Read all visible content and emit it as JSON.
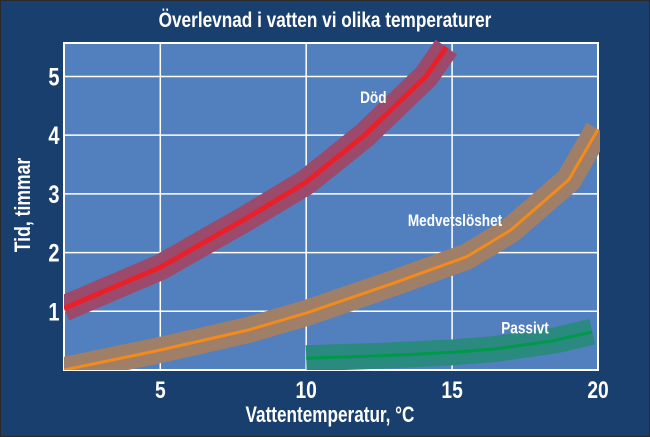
{
  "chart_data": {
    "type": "line",
    "title": "Överlevnad i vatten vi olika temperaturer",
    "xlabel": "Vattentemperatur, °C",
    "ylabel": "Tid, timmar",
    "xlim": [
      1.7,
      20
    ],
    "ylim": [
      0,
      5.57
    ],
    "xticks": [
      5,
      10,
      15,
      20
    ],
    "yticks": [
      1,
      2,
      3,
      4,
      5
    ],
    "grid": true,
    "series": [
      {
        "name": "Död",
        "color": "#e8202a",
        "band_color": "#9b4a6c",
        "points": [
          [
            1.7,
            1.05
          ],
          [
            5,
            1.75
          ],
          [
            8,
            2.6
          ],
          [
            10,
            3.2
          ],
          [
            12,
            4.0
          ],
          [
            14.1,
            5.0
          ],
          [
            14.8,
            5.5
          ]
        ],
        "label_at": [
          12.3,
          4.55
        ]
      },
      {
        "name": "Medvetslöshet",
        "color": "#f28a1c",
        "band_color": "#a07f68",
        "points": [
          [
            1.7,
            0.0
          ],
          [
            5,
            0.34
          ],
          [
            8,
            0.68
          ],
          [
            10,
            0.97
          ],
          [
            13,
            1.48
          ],
          [
            15.5,
            1.93
          ],
          [
            17,
            2.38
          ],
          [
            19,
            3.24
          ],
          [
            20,
            4.1
          ]
        ],
        "label_at": [
          15.1,
          2.45
        ]
      },
      {
        "name": "Passivt",
        "color": "#00994a",
        "band_color": "#2b8a7f",
        "points": [
          [
            10,
            0.2
          ],
          [
            13,
            0.25
          ],
          [
            15,
            0.3
          ],
          [
            16.5,
            0.36
          ],
          [
            18.5,
            0.5
          ],
          [
            19.8,
            0.65
          ]
        ],
        "label_at": [
          17.5,
          0.62
        ]
      }
    ]
  },
  "colors": {
    "background": "#183f6e",
    "plot": "#527fbd",
    "grid": "#ffffff"
  }
}
